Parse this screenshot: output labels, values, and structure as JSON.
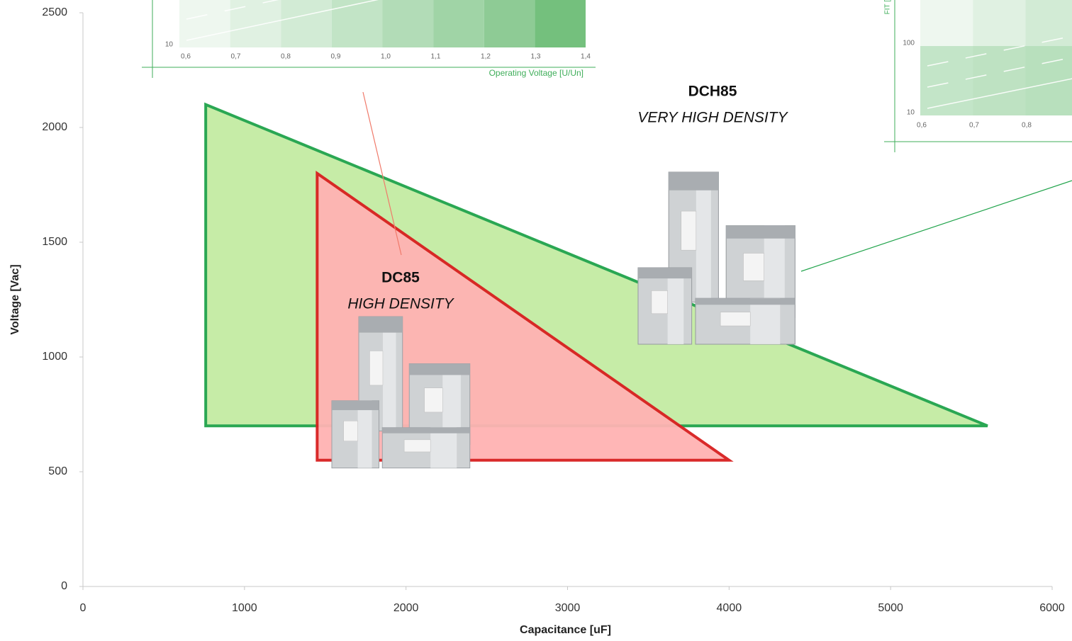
{
  "chart_data": [
    {
      "type": "area",
      "xlabel": "Capacitance [uF]",
      "ylabel": "Voltage [Vac]",
      "xlim": [
        0,
        6000
      ],
      "xticks": [
        0,
        1000,
        2000,
        3000,
        4000,
        5000,
        6000
      ],
      "ylim": [
        0,
        2500
      ],
      "yticks": [
        0,
        500,
        1000,
        1500,
        2000,
        2500
      ],
      "grid": false,
      "series": [
        {
          "name": "DCH85",
          "subtitle": "VERY HIGH DENSITY",
          "color": "#1fa34a",
          "fill": "#c3eba3",
          "x": [
            760,
            760,
            5600
          ],
          "values": [
            2100,
            700,
            700
          ]
        },
        {
          "name": "DC85",
          "subtitle": "HIGH DENSITY",
          "color": "#d81f1f",
          "fill": "#ffb3b3",
          "x": [
            1450,
            1450,
            4000
          ],
          "values": [
            1800,
            550,
            550
          ]
        }
      ]
    },
    {
      "type": "inset",
      "xlabel": "Operating Voltage [U/Un]",
      "xlim": [
        0.6,
        1.4
      ],
      "xticks": [
        {
          "value": 0.6,
          "label": "0,6"
        },
        {
          "value": 0.7,
          "label": "0,7"
        },
        {
          "value": 0.8,
          "label": "0,8"
        },
        {
          "value": 0.9,
          "label": "0,9"
        },
        {
          "value": 1.0,
          "label": "1,0"
        },
        {
          "value": 1.1,
          "label": "1,1"
        },
        {
          "value": 1.2,
          "label": "1,2"
        },
        {
          "value": 1.3,
          "label": "1,3"
        },
        {
          "value": 1.4,
          "label": "1,4"
        }
      ],
      "ylim": [
        10,
        100
      ],
      "yticks": [
        10
      ],
      "log_y": true
    },
    {
      "type": "inset",
      "ylabel": "FIT [",
      "xlim": [
        0.6,
        1.4
      ],
      "xticks": [
        {
          "value": 0.6,
          "label": "0,6"
        },
        {
          "value": 0.7,
          "label": "0,7"
        },
        {
          "value": 0.8,
          "label": "0,8"
        }
      ],
      "ylim": [
        10,
        1000
      ],
      "yticks": [
        10,
        100
      ],
      "log_y": true
    }
  ]
}
